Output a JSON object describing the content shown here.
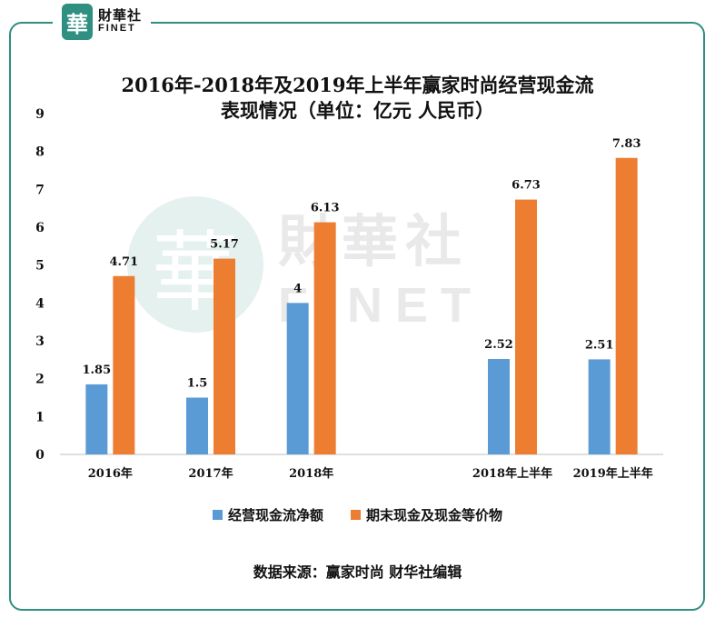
{
  "logo": {
    "seal_char": "華",
    "name_cn": "財華社",
    "name_en": "FINET"
  },
  "watermark": {
    "seal_char": "華",
    "name_cn": "財華社",
    "name_en": "FINET"
  },
  "source_note": "数据来源：赢家时尚 财华社编辑",
  "colors": {
    "frame": "#2f8f80",
    "series1": "#5b9bd5",
    "series2": "#ed7d31"
  },
  "chart_data": {
    "type": "bar",
    "title_line1": "2016年-2018年及2019年上半年赢家时尚经营现金流",
    "title_line2": "表现情况（单位：亿元 人民币）",
    "categories": [
      "2016年",
      "2017年",
      "2018年",
      "",
      "2018年上半年",
      "2019年上半年"
    ],
    "series": [
      {
        "name": "经营现金流净额",
        "values": [
          1.85,
          1.5,
          4,
          null,
          2.52,
          2.51
        ],
        "labels": [
          "1.85",
          "1.5",
          "4",
          "",
          "2.52",
          "2.51"
        ],
        "color": "#5b9bd5"
      },
      {
        "name": "期末现金及现金等价物",
        "values": [
          4.71,
          5.17,
          6.13,
          null,
          6.73,
          7.83
        ],
        "labels": [
          "4.71",
          "5.17",
          "6.13",
          "",
          "6.73",
          "7.83"
        ],
        "color": "#ed7d31"
      }
    ],
    "y_ticks": [
      "0",
      "1",
      "2",
      "3",
      "4",
      "5",
      "6",
      "7",
      "8",
      "9"
    ],
    "ylim": [
      0,
      9
    ],
    "grid": false,
    "legend_position": "bottom"
  }
}
